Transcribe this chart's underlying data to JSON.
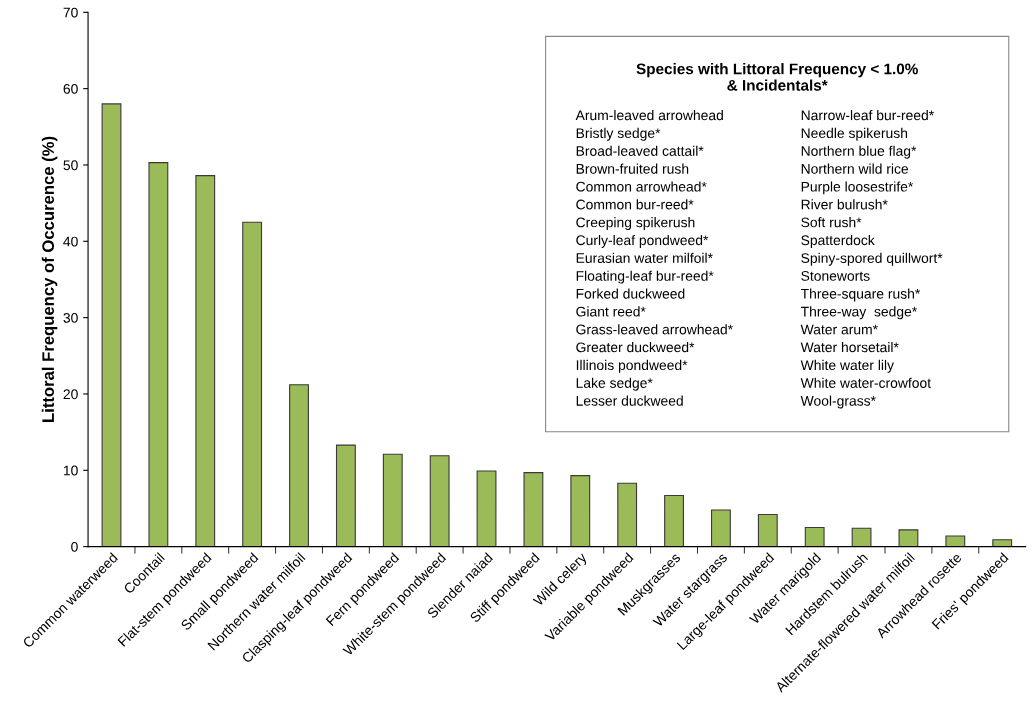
{
  "chart_data": {
    "type": "bar",
    "ylabel": "Littoral Frequency of Occurence (%)",
    "categories": [
      "Common waterweed",
      "Coontail",
      "Flat-stem pondweed",
      "Small pondweed",
      "Northern water milfoil",
      "Clasping-leaf pondweed",
      "Fern pondweed",
      "White-stem pondweed",
      "Slender naiad",
      "Stiff pondweed",
      "Wild celery",
      "Variable pondweed",
      "Muskgrasses",
      "Water stargrass",
      "Large-leaf pondweed",
      "Water marigold",
      "Hardstem bulrush",
      "Alternate-flowered water milfoil",
      "Arrowhead rosette",
      "Fries' pondweed"
    ],
    "values": [
      58.0,
      50.3,
      48.6,
      42.5,
      21.2,
      13.3,
      12.1,
      11.9,
      9.9,
      9.7,
      9.3,
      8.3,
      6.7,
      4.8,
      4.2,
      2.5,
      2.4,
      2.2,
      1.4,
      0.9
    ],
    "color": "#9bbb59",
    "ylim": [
      0,
      70
    ],
    "yticks": [
      0,
      10,
      20,
      30,
      40,
      50,
      60,
      70
    ],
    "grid": false,
    "annotations": [
      "Species with Littoral Frequency < 1.0%\n& Incidentals*",
      "Arum-leaved arrowhead",
      "Bristly sedge*",
      "Broad-leaved cattail*",
      "Brown-fruited rush",
      "Common arrowhead*",
      "Common bur-reed*",
      "Creeping spikerush",
      "Curly-leaf pondweed*",
      "Eurasian water milfoil*",
      "Floating-leaf bur-reed*",
      "Forked duckweed",
      "Giant reed*",
      "Grass-leaved arrowhead*",
      "Greater duckweed*",
      "Illinois pondweed*",
      "Lake sedge*",
      "Lesser duckweed",
      "Narrow-leaf bur-reed*",
      "Needle spikerush",
      "Northern blue flag*",
      "Northern wild rice",
      "Purple loosestrife*",
      "River bulrush*",
      "Soft rush*",
      "Spatterdock",
      "Spiny-spored quillwort*",
      "Stoneworts",
      "Three-square rush*",
      "Three-way  sedge*",
      "Water arum*",
      "Water horsetail*",
      "White water lily",
      "White water-crowfoot",
      "Wool-grass*"
    ]
  }
}
